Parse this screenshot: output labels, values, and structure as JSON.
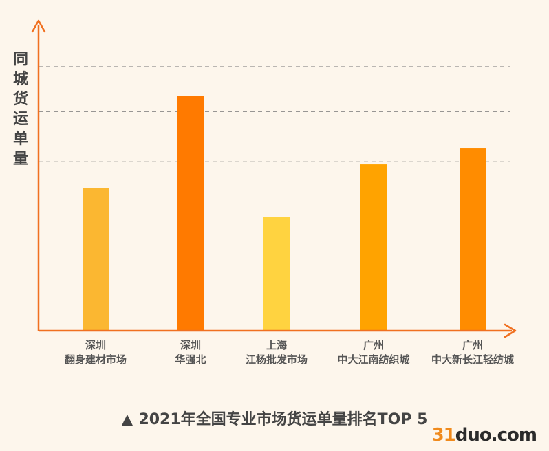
{
  "chart_data": {
    "type": "bar",
    "categories": [
      [
        "深圳",
        "翻身建材市场"
      ],
      [
        "深圳",
        "华强北"
      ],
      [
        "上海",
        "江杨批发市场"
      ],
      [
        "广州",
        "中大江南纺织城"
      ],
      [
        "广州",
        "中大新长江轻纺城"
      ]
    ],
    "values": [
      54,
      89,
      43,
      63,
      69
    ],
    "colors": [
      "#fbb731",
      "#ff7a00",
      "#ffd340",
      "#ffa300",
      "#ff8c00"
    ],
    "ylabel": "同城货运单量",
    "title": "2021年全国专业市场货运单量排名TOP 5",
    "ylim": [
      0,
      100
    ],
    "gridlines": [
      64,
      83,
      100
    ],
    "grid": true,
    "axis_color": "#f07020"
  },
  "caption": {
    "marker": "▲",
    "text": "2021年全国专业市场货运单量排名TOP 5"
  },
  "watermark": {
    "num": "31",
    "rest": "duo.com"
  }
}
